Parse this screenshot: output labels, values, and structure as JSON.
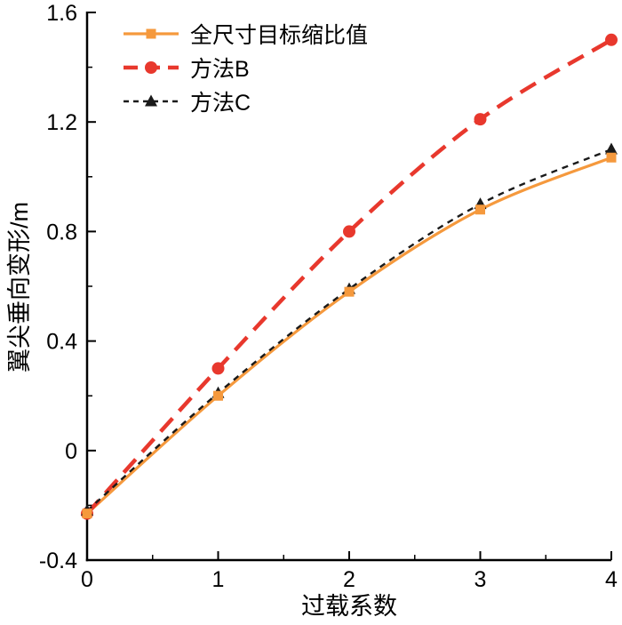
{
  "figure": {
    "background": "#ffffff"
  },
  "chart_data": {
    "type": "line",
    "title": "",
    "xlabel": "过载系数",
    "ylabel": "翼尖垂向变形/m",
    "xlim": [
      0,
      4
    ],
    "ylim": [
      -0.4,
      1.6
    ],
    "grid": false,
    "legend_position": "top-left-inside",
    "axis_color": "#000000",
    "xticks": {
      "values": [
        0,
        1,
        2,
        3,
        4
      ],
      "labels": [
        "0",
        "1",
        "2",
        "3",
        "4"
      ]
    },
    "yticks": {
      "values": [
        -0.4,
        0,
        0.4,
        0.8,
        1.2,
        1.6
      ],
      "labels": [
        "-0.4",
        "0",
        "0.4",
        "0.8",
        "1.2",
        "1.6"
      ]
    },
    "x": [
      0,
      1,
      2,
      3,
      4
    ],
    "series": [
      {
        "name": "全尺寸目标缩比值",
        "values": [
          -0.23,
          0.2,
          0.58,
          0.88,
          1.07
        ],
        "color": "#F5993D",
        "line_style": "solid",
        "marker": "square"
      },
      {
        "name": "方法B",
        "values": [
          -0.23,
          0.3,
          0.8,
          1.21,
          1.5
        ],
        "color": "#E8382D",
        "line_style": "long-dash",
        "marker": "circle"
      },
      {
        "name": "方法C",
        "values": [
          -0.22,
          0.21,
          0.59,
          0.9,
          1.1
        ],
        "color": "#1A1A1A",
        "line_style": "short-dash",
        "marker": "triangle"
      }
    ]
  }
}
